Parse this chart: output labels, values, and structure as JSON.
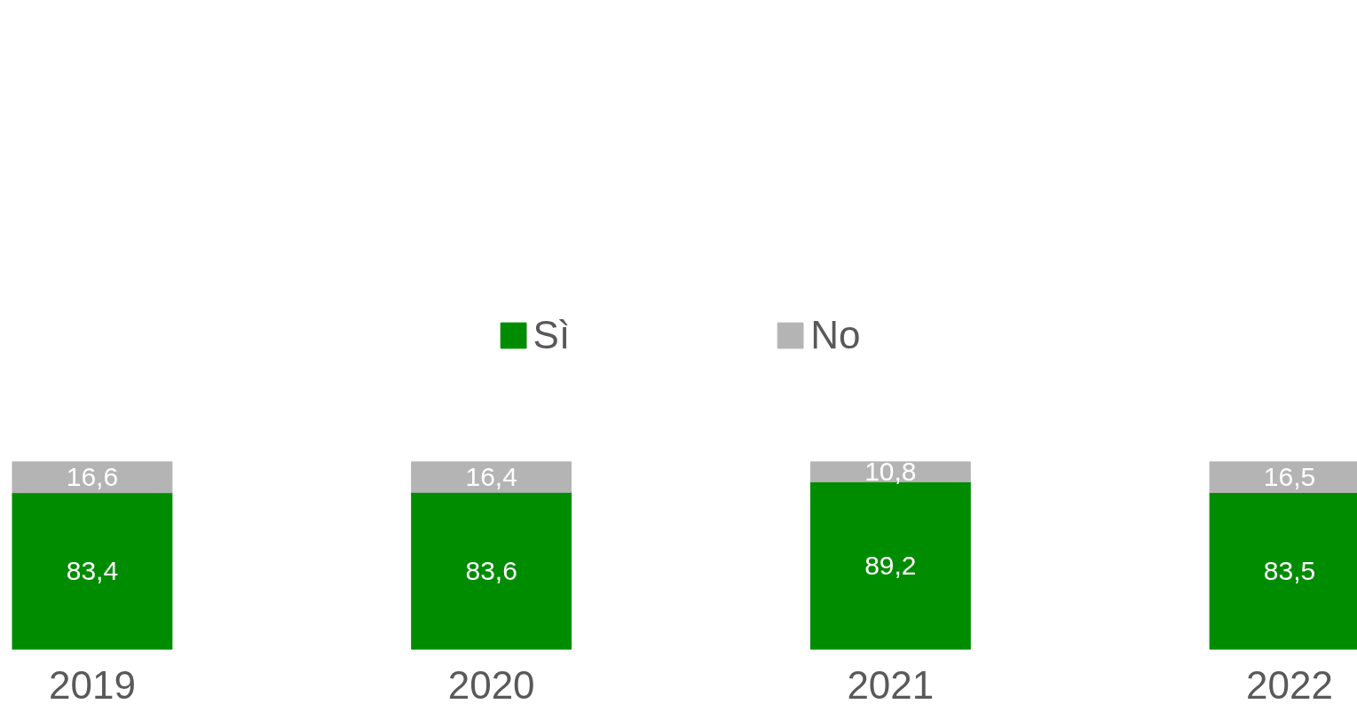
{
  "chart_data": {
    "type": "bar",
    "stacked": true,
    "categories": [
      "2019",
      "2020",
      "2021",
      "2022"
    ],
    "ylim": [
      0,
      100
    ],
    "tick_labels": "x",
    "grid": false,
    "legend": "top",
    "series": [
      {
        "name": "Sì",
        "color": "#008c00",
        "values": [
          83.4,
          83.6,
          89.2,
          83.5
        ],
        "value_labels": [
          "83,4",
          "83,6",
          "89,2",
          "83,5"
        ]
      },
      {
        "name": "No",
        "color": "#b4b4b4",
        "values": [
          16.6,
          16.4,
          10.8,
          16.5
        ],
        "value_labels": [
          "16,6",
          "16,4",
          "10,8",
          "16,5"
        ]
      }
    ]
  }
}
